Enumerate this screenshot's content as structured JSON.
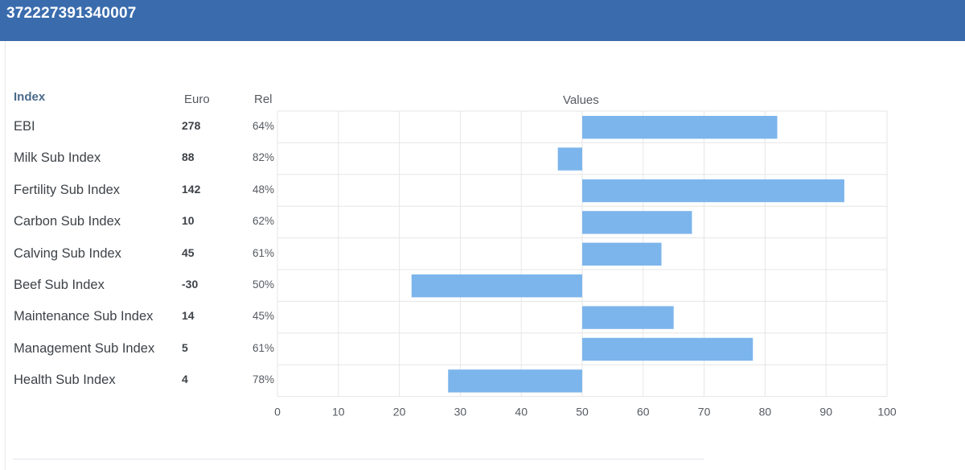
{
  "header": {
    "title": "372227391340007"
  },
  "table": {
    "index_label": "Index",
    "euro_label": "Euro",
    "rel_label": "Rel"
  },
  "colors": {
    "header": "#3a6cad",
    "bar": "#7cb5ec",
    "grid": "#e6e6e6"
  },
  "chart_data": {
    "type": "bar",
    "orientation": "horizontal",
    "title": "Values",
    "baseline": 50,
    "xlim": [
      0,
      100
    ],
    "x_ticks": [
      0,
      10,
      20,
      30,
      40,
      50,
      60,
      70,
      80,
      90,
      100
    ],
    "grid": true,
    "categories": [
      "EBI",
      "Milk Sub Index",
      "Fertility Sub Index",
      "Carbon Sub Index",
      "Calving Sub Index",
      "Beef Sub Index",
      "Maintenance Sub Index",
      "Management Sub Index",
      "Health Sub Index"
    ],
    "values": [
      82,
      46,
      93,
      68,
      63,
      22,
      65,
      78,
      28
    ],
    "euro": [
      "278",
      "88",
      "142",
      "10",
      "45",
      "-30",
      "14",
      "5",
      "4"
    ],
    "rel": [
      "64%",
      "82%",
      "48%",
      "62%",
      "61%",
      "50%",
      "45%",
      "61%",
      "78%"
    ]
  }
}
